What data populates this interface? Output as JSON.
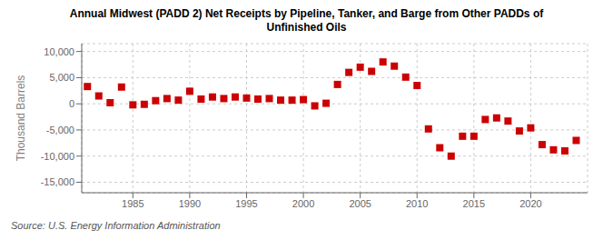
{
  "chart_data": {
    "type": "scatter",
    "title": "Annual Midwest (PADD 2) Net Receipts by Pipeline, Tanker, and Barge from Other PADDs of\nUnfinished Oils",
    "ylabel": "Thousand Barrels",
    "annotations": [
      "Source: U.S. Energy Information Administration"
    ],
    "x": [
      1981,
      1982,
      1983,
      1984,
      1985,
      1986,
      1987,
      1988,
      1989,
      1990,
      1991,
      1992,
      1993,
      1994,
      1995,
      1996,
      1997,
      1998,
      1999,
      2000,
      2001,
      2002,
      2003,
      2004,
      2005,
      2006,
      2007,
      2008,
      2009,
      2010,
      2011,
      2012,
      2013,
      2014,
      2015,
      2016,
      2017,
      2018,
      2019,
      2020,
      2021,
      2022,
      2023,
      2024
    ],
    "values": [
      3300,
      1500,
      200,
      3200,
      -200,
      -100,
      600,
      1000,
      700,
      2400,
      900,
      1300,
      1000,
      1300,
      1100,
      900,
      1000,
      700,
      700,
      800,
      -400,
      100,
      3700,
      6000,
      7000,
      6200,
      8000,
      7200,
      5100,
      3500,
      -4800,
      -8400,
      -10000,
      -6200,
      -6200,
      -3000,
      -2700,
      -3300,
      -5200,
      -4600,
      -7800,
      -8800,
      -9000,
      -7000
    ],
    "color": "#cc0000",
    "marker": "square",
    "xlim": [
      1980.5,
      2025
    ],
    "ylim": [
      -17000,
      11500
    ],
    "xticks": [
      1985,
      1990,
      1995,
      2000,
      2005,
      2010,
      2015,
      2020
    ],
    "yticks": [
      {
        "value": -15000,
        "label": "-15,000"
      },
      {
        "value": -10000,
        "label": "-10,000"
      },
      {
        "value": -5000,
        "label": "-5,000"
      },
      0,
      {
        "value": 5000,
        "label": "5,000"
      },
      {
        "value": 10000,
        "label": "10,000"
      }
    ],
    "grid": true
  }
}
